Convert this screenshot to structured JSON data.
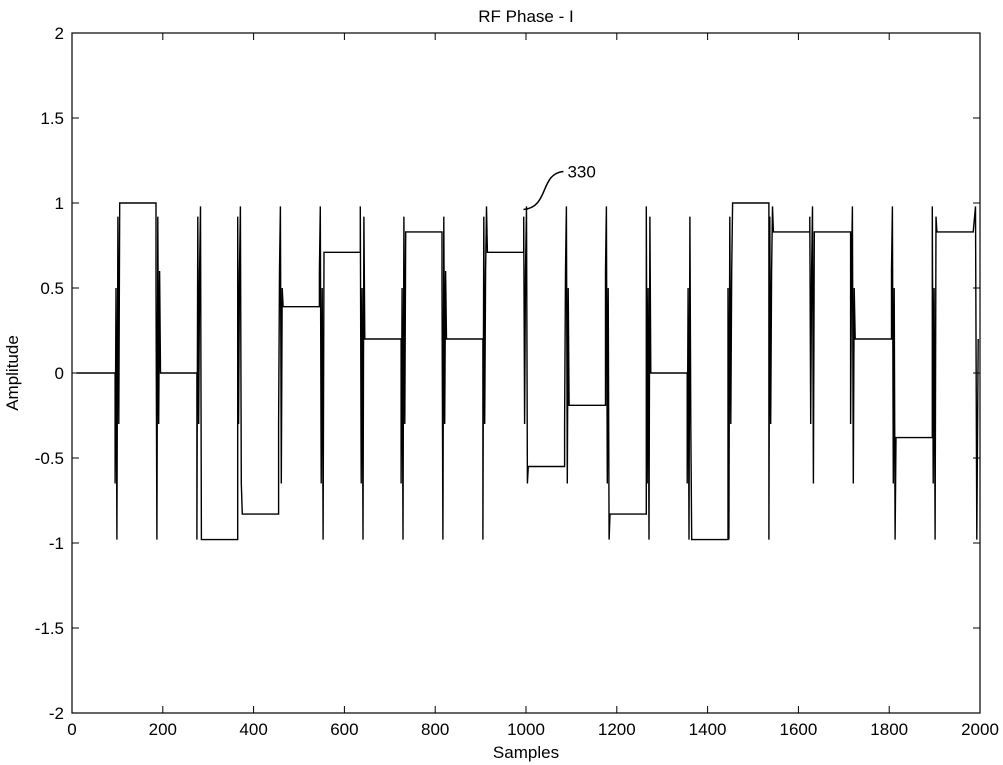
{
  "chart_data": {
    "type": "line",
    "title": "RF Phase - I",
    "xlabel": "Samples",
    "ylabel": "Amplitude",
    "xlim": [
      0,
      2000
    ],
    "ylim": [
      -2,
      2
    ],
    "x_ticks": [
      0,
      200,
      400,
      600,
      800,
      1000,
      1200,
      1400,
      1600,
      1800,
      2000
    ],
    "x_tick_labels": [
      "0",
      "200",
      "400",
      "600",
      "800",
      "1000",
      "1200",
      "1400",
      "1600",
      "1800",
      "2000"
    ],
    "y_ticks": [
      -2,
      -1.5,
      -1,
      -0.5,
      0,
      0.5,
      1,
      1.5,
      2
    ],
    "y_tick_labels": [
      "-2",
      "-1.5",
      "-1",
      "-0.5",
      "0",
      "0.5",
      "1",
      "1.5",
      "2"
    ],
    "grid": false,
    "line_color": "#000000",
    "symbol_period": 90,
    "symbol_levels": [
      0,
      1,
      0,
      -0.98,
      -0.83,
      0.39,
      0.71,
      0.2,
      0.83,
      0.2,
      0.71,
      -0.55,
      -0.19,
      -0.83,
      0,
      -0.98,
      1,
      0.83,
      0.83,
      0.2,
      -0.38,
      0.83
    ],
    "annotation": {
      "label": "330",
      "x": 990,
      "y": 0.95
    }
  }
}
